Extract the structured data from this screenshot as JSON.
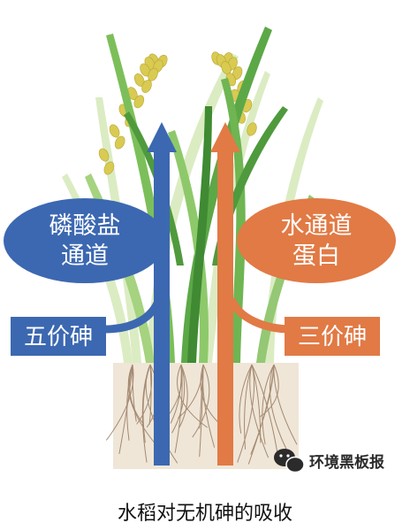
{
  "left_bubble": {
    "line1": "磷酸盐",
    "line2": "通道"
  },
  "right_bubble": {
    "line1": "水通道",
    "line2": "蛋白"
  },
  "left_label": "五价砷",
  "right_label": "三价砷",
  "watermark": "环境黑板报",
  "caption": "水稻对无机砷的吸收",
  "colors": {
    "blue": "#3c68b1",
    "orange": "#e17a45",
    "plant_light": "#b8d88a",
    "plant_dark": "#4f9a3d",
    "grain": "#d9ca52",
    "soil": "#efe6d7"
  }
}
